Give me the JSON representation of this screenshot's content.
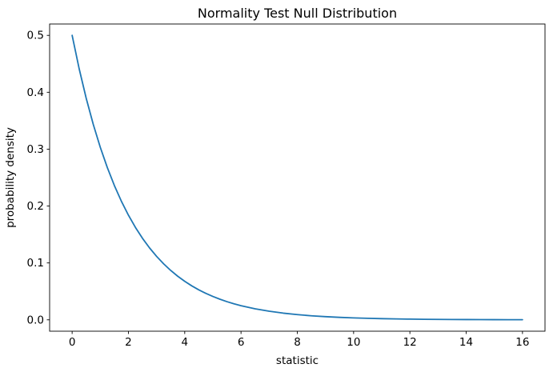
{
  "chart_data": {
    "type": "line",
    "title": "Normality Test Null Distribution",
    "xlabel": "statistic",
    "ylabel": "probability density",
    "background_color": "#ffffff",
    "line_color": "#1f77b4",
    "line_width": 1.8,
    "spine_color": "#000000",
    "grid": false,
    "legend": "none",
    "xlim": [
      -0.8,
      16.8
    ],
    "ylim": [
      -0.02,
      0.52
    ],
    "xticks": [
      0,
      2,
      4,
      6,
      8,
      10,
      12,
      14,
      16
    ],
    "xtick_labels": [
      "0",
      "2",
      "4",
      "6",
      "8",
      "10",
      "12",
      "14",
      "16"
    ],
    "yticks": [
      0.0,
      0.1,
      0.2,
      0.3,
      0.4,
      0.5
    ],
    "ytick_labels": [
      "0.0",
      "0.1",
      "0.2",
      "0.3",
      "0.4",
      "0.5"
    ],
    "x": [
      0,
      0.25,
      0.5,
      0.75,
      1,
      1.25,
      1.5,
      1.75,
      2,
      2.25,
      2.5,
      2.75,
      3,
      3.25,
      3.5,
      3.75,
      4,
      4.25,
      4.5,
      4.75,
      5,
      5.25,
      5.5,
      5.75,
      6,
      6.5,
      7,
      7.5,
      8,
      8.5,
      9,
      9.5,
      10,
      10.5,
      11,
      11.5,
      12,
      12.5,
      13,
      13.5,
      14,
      14.5,
      15,
      15.5,
      16
    ],
    "y": [
      0.5,
      0.44125,
      0.3894,
      0.34364,
      0.30327,
      0.26763,
      0.23618,
      0.20843,
      0.18394,
      0.16233,
      0.14325,
      0.12642,
      0.11157,
      0.09846,
      0.08689,
      0.07668,
      0.06767,
      0.05972,
      0.0527,
      0.04651,
      0.04104,
      0.03622,
      0.03196,
      0.02821,
      0.02489,
      0.01939,
      0.0151,
      0.01176,
      0.00916,
      0.00713,
      0.00555,
      0.00433,
      0.00337,
      0.00262,
      0.00204,
      0.00159,
      0.00124,
      0.00097,
      0.00075,
      0.00059,
      0.00046,
      0.00035,
      0.00028,
      0.00022,
      0.00017
    ]
  }
}
